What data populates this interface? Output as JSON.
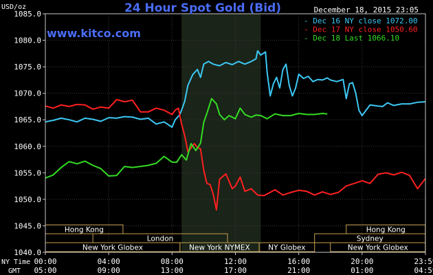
{
  "chart_data": {
    "type": "line",
    "title": "24 Hour Spot Gold (Bid)",
    "watermark": "www.kitco.com",
    "date_time": "December 18, 2015 23:05",
    "ylabel": "USD/oz",
    "ylim": [
      1040.0,
      1085.0
    ],
    "y_ticks": [
      "1085.0",
      "1080.0",
      "1075.0",
      "1070.0",
      "1065.0",
      "1060.0",
      "1055.0",
      "1050.0",
      "1045.0",
      "1040.0"
    ],
    "xlim": [
      0,
      24
    ],
    "ny_time_label": "NY Time",
    "gmt_label": "GMT",
    "ny_time_ticks": [
      "00:00",
      "04:00",
      "08:00",
      "12:00",
      "16:00",
      "20:00",
      "23:59"
    ],
    "gmt_ticks": [
      "05:00",
      "09:00",
      "13:00",
      "17:00",
      "21:00",
      "01:00",
      "04:59"
    ],
    "highlight_range": [
      8.6,
      13.6
    ],
    "sessions": [
      {
        "label": "Hong Kong",
        "start": 0,
        "end": 4.9,
        "row": 0
      },
      {
        "label": "Hong Kong",
        "start": 19.0,
        "end": 23.99,
        "row": 0
      },
      {
        "label": "London",
        "start": 3.0,
        "end": 11.5,
        "row": 1
      },
      {
        "label": "Sydney",
        "start": 17.0,
        "end": 23.99,
        "row": 1
      },
      {
        "label": "New York Globex",
        "start": 0,
        "end": 8.5,
        "row": 2
      },
      {
        "label": "New York NYMEX",
        "start": 8.5,
        "end": 13.5,
        "row": 2
      },
      {
        "label": "NY Globex",
        "start": 13.5,
        "end": 17.0,
        "row": 2
      },
      {
        "label": "New York Globex",
        "start": 18.0,
        "end": 23.99,
        "row": 2
      }
    ],
    "series": [
      {
        "name": "Dec 16 NY close 1072.00",
        "color": "#3cc8f5",
        "x": [
          0,
          0.5,
          1,
          1.5,
          2,
          2.5,
          3,
          3.5,
          4,
          4.5,
          5,
          5.5,
          6,
          6.5,
          7,
          7.5,
          8,
          8.2,
          8.5,
          8.8,
          9,
          9.3,
          9.6,
          9.8,
          10,
          10.3,
          10.6,
          11,
          11.4,
          11.8,
          12.2,
          12.6,
          13,
          13.3,
          13.4,
          13.6,
          13.9,
          14,
          14.2,
          14.4,
          14.6,
          14.8,
          15,
          15.2,
          15.4,
          15.6,
          15.8,
          16,
          16.3,
          16.6,
          16.9,
          17.2,
          17.5,
          17.8,
          18,
          18.4,
          18.8,
          19,
          19.2,
          19.4,
          19.6,
          19.8,
          20,
          20.5,
          21,
          21.3,
          21.6,
          22,
          22.5,
          23,
          23.5,
          23.99
        ],
        "y": [
          1064.6,
          1064.9,
          1065.3,
          1065.0,
          1064.6,
          1065.3,
          1065.1,
          1064.7,
          1065.4,
          1065.3,
          1065.6,
          1065.5,
          1065.1,
          1065.3,
          1064.2,
          1064.6,
          1063.6,
          1065.0,
          1066.0,
          1068.5,
          1071.5,
          1073.5,
          1074.5,
          1073.0,
          1075.5,
          1076.0,
          1075.5,
          1075.2,
          1075.8,
          1075.4,
          1076.0,
          1075.5,
          1076.0,
          1076.5,
          1078.0,
          1077.2,
          1077.8,
          1074.0,
          1069.5,
          1071.8,
          1073.0,
          1071.0,
          1074.5,
          1075.5,
          1071.5,
          1069.5,
          1071.0,
          1073.6,
          1072.8,
          1073.2,
          1072.2,
          1072.6,
          1072.5,
          1072.9,
          1072.5,
          1072.2,
          1072.6,
          1069.0,
          1071.8,
          1072.0,
          1070.0,
          1066.8,
          1065.8,
          1067.8,
          1067.6,
          1067.5,
          1068.2,
          1067.7,
          1068.0,
          1068.0,
          1068.3,
          1068.4
        ]
      },
      {
        "name": "Dec 17 NY close 1050.60",
        "color": "#ff2020",
        "x": [
          0,
          0.5,
          1,
          1.5,
          2,
          2.5,
          3,
          3.5,
          4,
          4.5,
          5,
          5.5,
          6,
          6.5,
          7,
          7.5,
          8,
          8.2,
          8.4,
          8.6,
          8.8,
          9,
          9.2,
          9.4,
          9.6,
          9.8,
          10,
          10.2,
          10.4,
          10.6,
          10.8,
          11,
          11.4,
          11.8,
          12,
          12.3,
          12.6,
          13,
          13.4,
          13.8,
          14,
          14.5,
          15,
          15.5,
          16,
          16.5,
          17,
          17.5,
          18,
          18.5,
          19,
          19.5,
          20,
          20.5,
          21,
          21.5,
          22,
          22.5,
          23,
          23.5,
          23.99
        ],
        "y": [
          1067.6,
          1067.2,
          1067.8,
          1067.5,
          1067.9,
          1067.8,
          1067.0,
          1067.4,
          1067.2,
          1068.8,
          1068.4,
          1068.7,
          1066.5,
          1066.5,
          1067.2,
          1066.8,
          1066.0,
          1066.8,
          1067.2,
          1064.2,
          1062.0,
          1059.0,
          1059.7,
          1060.5,
          1059.8,
          1059.5,
          1055.5,
          1053.0,
          1052.8,
          1051.0,
          1048.0,
          1053.8,
          1054.8,
          1052.0,
          1052.5,
          1054.2,
          1051.5,
          1052.0,
          1050.8,
          1050.7,
          1051.0,
          1051.8,
          1050.8,
          1051.3,
          1051.7,
          1051.5,
          1050.8,
          1051.4,
          1050.9,
          1051.3,
          1052.5,
          1053.0,
          1053.5,
          1053.0,
          1054.7,
          1055.0,
          1054.6,
          1055.1,
          1054.5,
          1052.0,
          1053.9
        ]
      },
      {
        "name": "Dec 18 Last 1066.10",
        "color": "#33dd22",
        "x": [
          0,
          0.5,
          1,
          1.5,
          2,
          2.5,
          3,
          3.5,
          4,
          4.5,
          5,
          5.5,
          6,
          6.5,
          7,
          7.5,
          8,
          8.3,
          8.6,
          8.9,
          9.2,
          9.5,
          9.8,
          10,
          10.2,
          10.5,
          10.8,
          11,
          11.3,
          11.6,
          12,
          12.3,
          12.6,
          13,
          13.3,
          13.6,
          14,
          14.5,
          15,
          15.5,
          16,
          16.5,
          17,
          17.5,
          17.8
        ],
        "y": [
          1054.0,
          1054.6,
          1056.0,
          1057.1,
          1056.7,
          1057.2,
          1056.4,
          1055.8,
          1054.4,
          1054.5,
          1056.2,
          1056.0,
          1056.2,
          1056.4,
          1056.8,
          1058.1,
          1057.0,
          1057.0,
          1058.4,
          1057.4,
          1060.5,
          1059.2,
          1060.6,
          1064.5,
          1066.2,
          1069.0,
          1068.0,
          1066.0,
          1065.0,
          1065.8,
          1065.2,
          1067.2,
          1066.0,
          1065.5,
          1065.9,
          1065.8,
          1065.2,
          1066.1,
          1065.8,
          1065.8,
          1066.2,
          1066.0,
          1066.0,
          1066.2,
          1066.1
        ]
      }
    ]
  }
}
